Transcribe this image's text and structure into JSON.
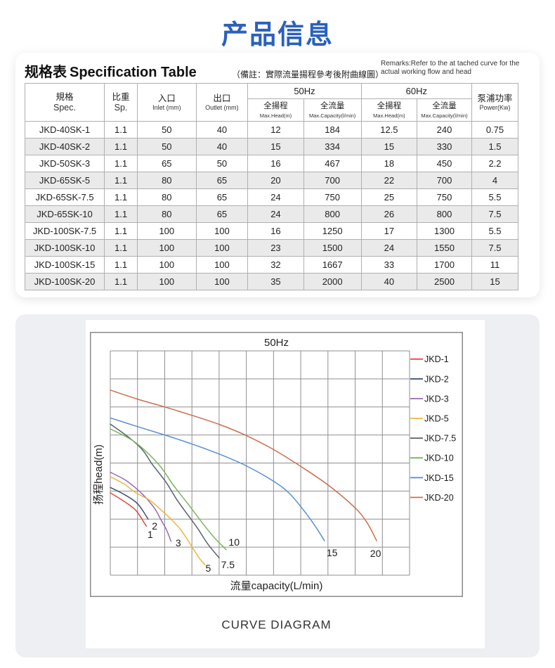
{
  "page": {
    "title": "产品信息",
    "title_color": "#2a61b9"
  },
  "spec_section": {
    "heading_zh": "规格表",
    "heading_en": "Specification Table",
    "note_zh": "（備註：實際流量揚程參考後附曲線圖）",
    "remark_en_line1": "Remarks:Refer to the at tached curve for the",
    "remark_en_line2": "actual working flow and head",
    "table": {
      "group_headers": [
        {
          "label": "50Hz"
        },
        {
          "label": "60Hz"
        }
      ],
      "headers": [
        {
          "zh": "規格",
          "en": "Spec."
        },
        {
          "zh": "比重",
          "en": "Sp."
        },
        {
          "zh": "入口",
          "en": "Inlet (mm)"
        },
        {
          "zh": "出口",
          "en": "Outlet (mm)"
        },
        {
          "zh": "全揚程",
          "en": "Max.Head(m)"
        },
        {
          "zh": "全流量",
          "en": "Max.Capacity(l/min)"
        },
        {
          "zh": "全揚程",
          "en": "Max.Head(m)"
        },
        {
          "zh": "全流量",
          "en": "Max.Capacity(l/min)"
        },
        {
          "zh": "泵浦功率",
          "en": "Power(Kw)"
        }
      ],
      "rows": [
        [
          "JKD-40SK-1",
          "1.1",
          "50",
          "40",
          "12",
          "184",
          "12.5",
          "240",
          "0.75"
        ],
        [
          "JKD-40SK-2",
          "1.1",
          "50",
          "40",
          "15",
          "334",
          "15",
          "330",
          "1.5"
        ],
        [
          "JKD-50SK-3",
          "1.1",
          "65",
          "50",
          "16",
          "467",
          "18",
          "450",
          "2.2"
        ],
        [
          "JKD-65SK-5",
          "1.1",
          "80",
          "65",
          "20",
          "700",
          "22",
          "700",
          "4"
        ],
        [
          "JKD-65SK-7.5",
          "1.1",
          "80",
          "65",
          "24",
          "750",
          "25",
          "750",
          "5.5"
        ],
        [
          "JKD-65SK-10",
          "1.1",
          "80",
          "65",
          "24",
          "800",
          "26",
          "800",
          "7.5"
        ],
        [
          "JKD-100SK-7.5",
          "1.1",
          "100",
          "100",
          "16",
          "1250",
          "17",
          "1300",
          "5.5"
        ],
        [
          "JKD-100SK-10",
          "1.1",
          "100",
          "100",
          "23",
          "1500",
          "24",
          "1550",
          "7.5"
        ],
        [
          "JKD-100SK-15",
          "1.1",
          "100",
          "100",
          "32",
          "1667",
          "33",
          "1700",
          "11"
        ],
        [
          "JKD-100SK-20",
          "1.1",
          "100",
          "100",
          "35",
          "2000",
          "40",
          "2500",
          "15"
        ]
      ]
    }
  },
  "chart_data": {
    "type": "line",
    "title": "50Hz",
    "xlabel": "流量capacity(L/min)",
    "ylabel": "扬程head(m)",
    "caption": "CURVE DIAGRAM",
    "legend_position": "right",
    "grid": {
      "cols": 11,
      "rows": 8,
      "x_tick_labels": [],
      "y_tick_labels": []
    },
    "axis_note": "grid has no numeric tick labels; curve points given in grid-cell units (col,row from top-left)",
    "series": [
      {
        "name": "JKD-1",
        "color": "#e2493b",
        "end_label": "1",
        "points_grid": [
          [
            0,
            5.06
          ],
          [
            0.51,
            5.37
          ],
          [
            0.91,
            5.66
          ],
          [
            1.11,
            5.92
          ],
          [
            1.24,
            6.12
          ],
          [
            1.33,
            6.25
          ]
        ],
        "label_pos": [
          1.47,
          6.54
        ]
      },
      {
        "name": "JKD-2",
        "color": "#3f5175",
        "end_label": "2",
        "points_grid": [
          [
            0,
            4.87
          ],
          [
            0.51,
            5.12
          ],
          [
            0.91,
            5.37
          ],
          [
            1.11,
            5.58
          ],
          [
            1.28,
            5.83
          ],
          [
            1.39,
            6.0
          ]
        ],
        "label_pos": [
          1.63,
          6.25
        ]
      },
      {
        "name": "JKD-3",
        "color": "#9569b8",
        "end_label": "3",
        "points_grid": [
          [
            0,
            4.33
          ],
          [
            0.51,
            4.58
          ],
          [
            0.91,
            4.87
          ],
          [
            1.28,
            5.21
          ],
          [
            1.63,
            5.62
          ],
          [
            1.85,
            6.0
          ],
          [
            2.06,
            6.37
          ],
          [
            2.23,
            6.79
          ]
        ],
        "label_pos": [
          2.5,
          6.85
        ]
      },
      {
        "name": "JKD-5",
        "color": "#ecb73f",
        "end_label": "5",
        "points_grid": [
          [
            0,
            4.49
          ],
          [
            0.51,
            4.75
          ],
          [
            0.91,
            5.04
          ],
          [
            1.45,
            5.33
          ],
          [
            1.85,
            5.66
          ],
          [
            2.23,
            6.0
          ],
          [
            2.62,
            6.42
          ],
          [
            3.01,
            7.0
          ],
          [
            3.26,
            7.38
          ],
          [
            3.48,
            7.63
          ]
        ],
        "label_pos": [
          3.6,
          7.75
        ]
      },
      {
        "name": "JKD-7.5",
        "color": "#59616e",
        "end_label": "7.5",
        "points_grid": [
          [
            0,
            2.61
          ],
          [
            0.7,
            3.1
          ],
          [
            1.2,
            3.55
          ],
          [
            1.54,
            4.04
          ],
          [
            2.06,
            4.7
          ],
          [
            2.49,
            5.37
          ],
          [
            3.18,
            6.29
          ],
          [
            3.57,
            6.87
          ],
          [
            4.0,
            7.38
          ]
        ],
        "label_pos": [
          4.32,
          7.62
        ]
      },
      {
        "name": "JKD-10",
        "color": "#7cb45c",
        "end_label": "10",
        "points_grid": [
          [
            0,
            2.78
          ],
          [
            0.9,
            3.25
          ],
          [
            1.76,
            4.03
          ],
          [
            2.32,
            4.79
          ],
          [
            2.92,
            5.54
          ],
          [
            3.44,
            6.21
          ],
          [
            3.87,
            6.71
          ],
          [
            4.26,
            7.09
          ]
        ],
        "label_pos": [
          4.55,
          6.82
        ]
      },
      {
        "name": "JKD-15",
        "color": "#5a8fd3",
        "end_label": "15",
        "points_grid": [
          [
            0,
            2.39
          ],
          [
            1,
            2.7
          ],
          [
            2,
            3.0
          ],
          [
            3,
            3.32
          ],
          [
            4,
            3.68
          ],
          [
            5,
            4.1
          ],
          [
            6,
            4.65
          ],
          [
            6.6,
            5.1
          ],
          [
            7.2,
            5.8
          ],
          [
            7.6,
            6.35
          ],
          [
            7.87,
            6.77
          ]
        ],
        "label_pos": [
          8.15,
          7.2
        ]
      },
      {
        "name": "JKD-20",
        "color": "#cc6f4c",
        "end_label": "20",
        "points_grid": [
          [
            0,
            1.4
          ],
          [
            1,
            1.72
          ],
          [
            2,
            2.0
          ],
          [
            3,
            2.3
          ],
          [
            4,
            2.62
          ],
          [
            5,
            3.02
          ],
          [
            6,
            3.52
          ],
          [
            7,
            4.12
          ],
          [
            8,
            4.78
          ],
          [
            9,
            5.6
          ],
          [
            9.45,
            6.15
          ],
          [
            9.79,
            6.77
          ]
        ],
        "label_pos": [
          9.75,
          7.22
        ]
      }
    ]
  }
}
